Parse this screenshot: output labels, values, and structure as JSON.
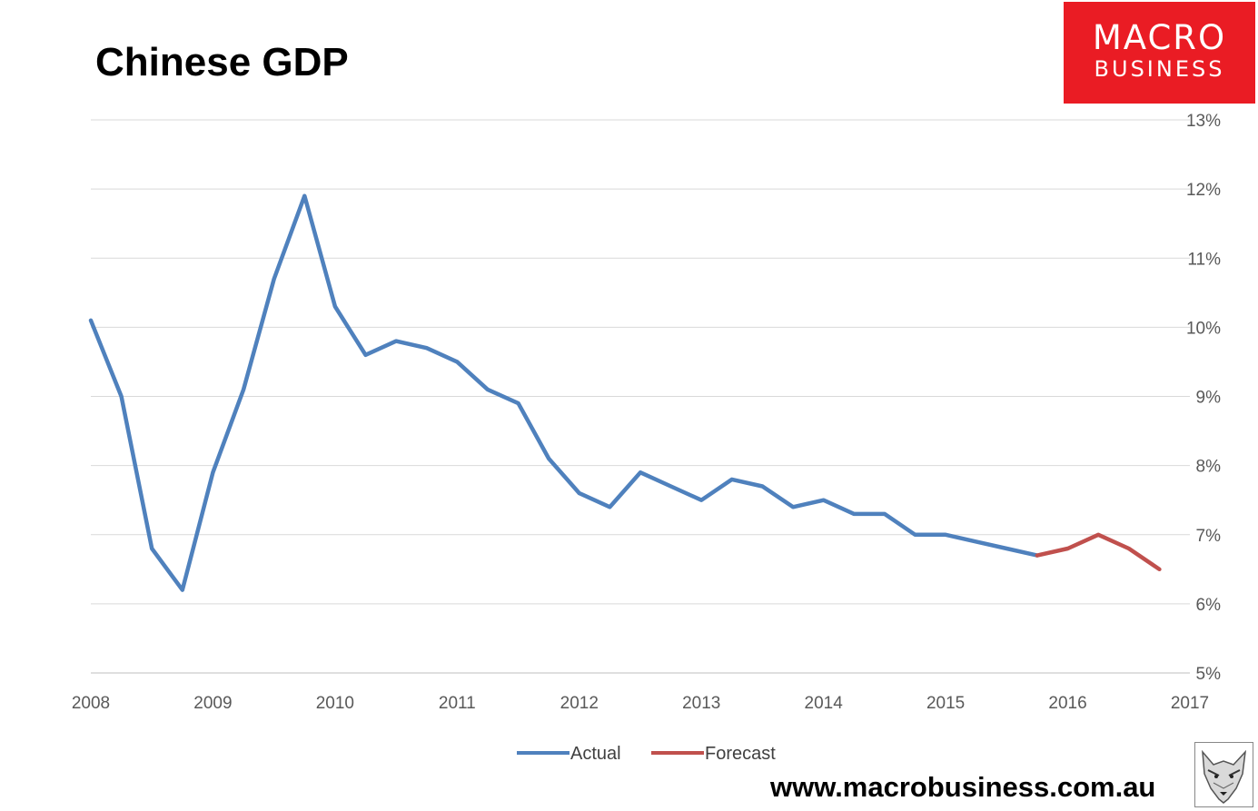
{
  "title": "Chinese GDP",
  "logo": {
    "line1": "MACRO",
    "line2": "BUSINESS"
  },
  "url": "www.macrobusiness.com.au",
  "colors": {
    "actual": "#4f81bd",
    "forecast": "#c0504d",
    "logo_bg": "#ea1c24",
    "grid": "#d9d9d9"
  },
  "chart_data": {
    "type": "line",
    "title": "Chinese GDP",
    "xlabel": "",
    "ylabel": "",
    "xlim": [
      2008,
      2017
    ],
    "ylim": [
      5,
      13
    ],
    "x_ticks": [
      "2008",
      "2009",
      "2010",
      "2011",
      "2012",
      "2013",
      "2014",
      "2015",
      "2016",
      "2017"
    ],
    "y_ticks": [
      "5%",
      "6%",
      "7%",
      "8%",
      "9%",
      "10%",
      "11%",
      "12%",
      "13%"
    ],
    "y_axis_side": "right",
    "grid": "horizontal",
    "legend": "bottom",
    "series": [
      {
        "name": "Actual",
        "color": "#4f81bd",
        "x": [
          2008.0,
          2008.25,
          2008.5,
          2008.75,
          2009.0,
          2009.25,
          2009.5,
          2009.75,
          2010.0,
          2010.25,
          2010.5,
          2010.75,
          2011.0,
          2011.25,
          2011.5,
          2011.75,
          2012.0,
          2012.25,
          2012.5,
          2012.75,
          2013.0,
          2013.25,
          2013.5,
          2013.75,
          2014.0,
          2014.25,
          2014.5,
          2014.75,
          2015.0,
          2015.25,
          2015.5,
          2015.75
        ],
        "y": [
          10.1,
          9.0,
          6.8,
          6.2,
          7.9,
          9.1,
          10.7,
          11.9,
          10.3,
          9.6,
          9.8,
          9.7,
          9.5,
          9.1,
          8.9,
          8.1,
          7.6,
          7.4,
          7.9,
          7.7,
          7.5,
          7.8,
          7.7,
          7.4,
          7.5,
          7.3,
          7.3,
          7.0,
          7.0,
          6.9,
          6.8,
          6.7
        ]
      },
      {
        "name": "Forecast",
        "color": "#c0504d",
        "x": [
          2015.75,
          2016.0,
          2016.25,
          2016.5,
          2016.75
        ],
        "y": [
          6.7,
          6.8,
          7.0,
          6.8,
          6.5
        ]
      }
    ]
  }
}
